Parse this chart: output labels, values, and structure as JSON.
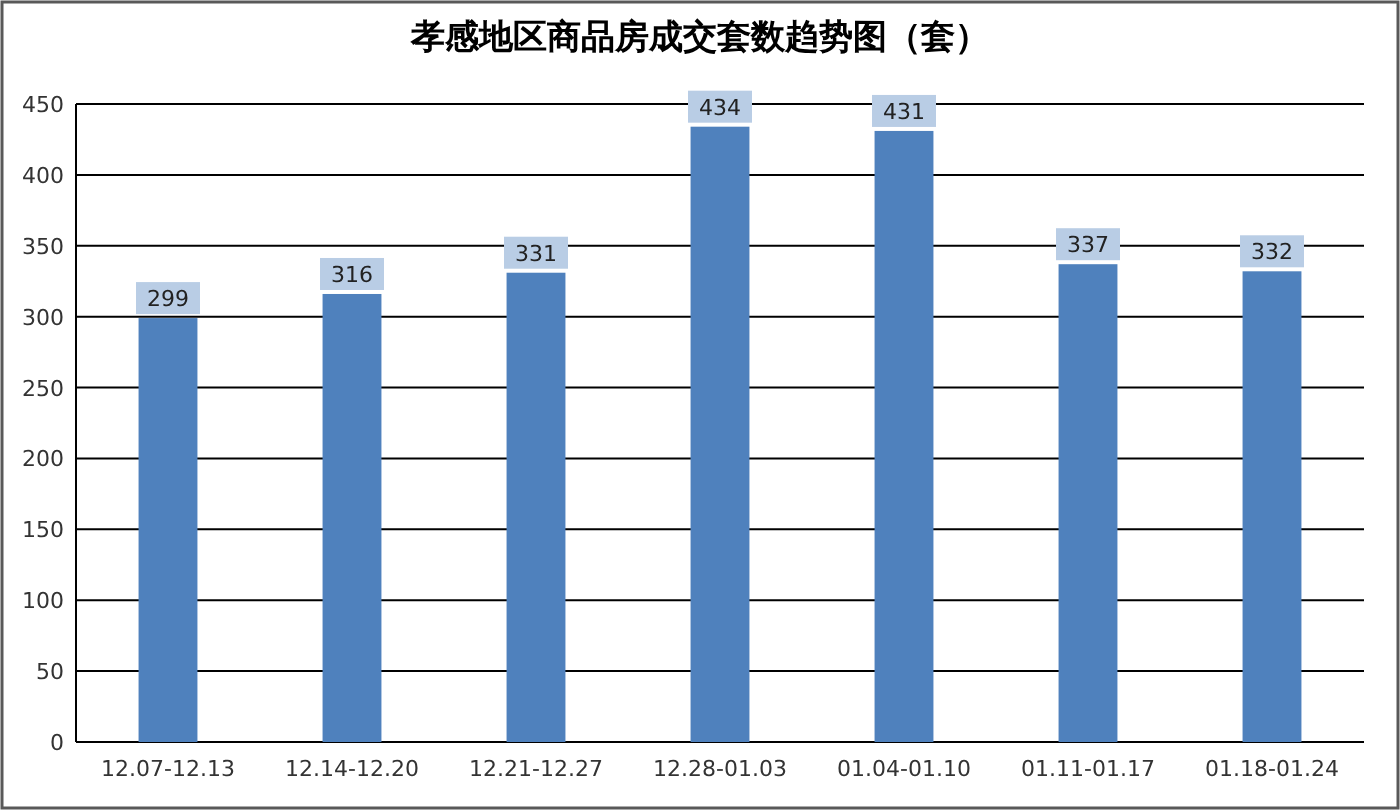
{
  "chart_data": {
    "type": "bar",
    "title": "孝感地区商品房成交套数趋势图（套）",
    "categories": [
      "12.07-12.13",
      "12.14-12.20",
      "12.21-12.27",
      "12.28-01.03",
      "01.04-01.10",
      "01.11-01.17",
      "01.18-01.24"
    ],
    "values": [
      299,
      316,
      331,
      434,
      431,
      337,
      332
    ],
    "color": "#4f81bd",
    "ylim": [
      0,
      450
    ],
    "yticks": [
      0,
      50,
      100,
      150,
      200,
      250,
      300,
      350,
      400,
      450
    ],
    "grid": "y",
    "data_labels": true
  }
}
